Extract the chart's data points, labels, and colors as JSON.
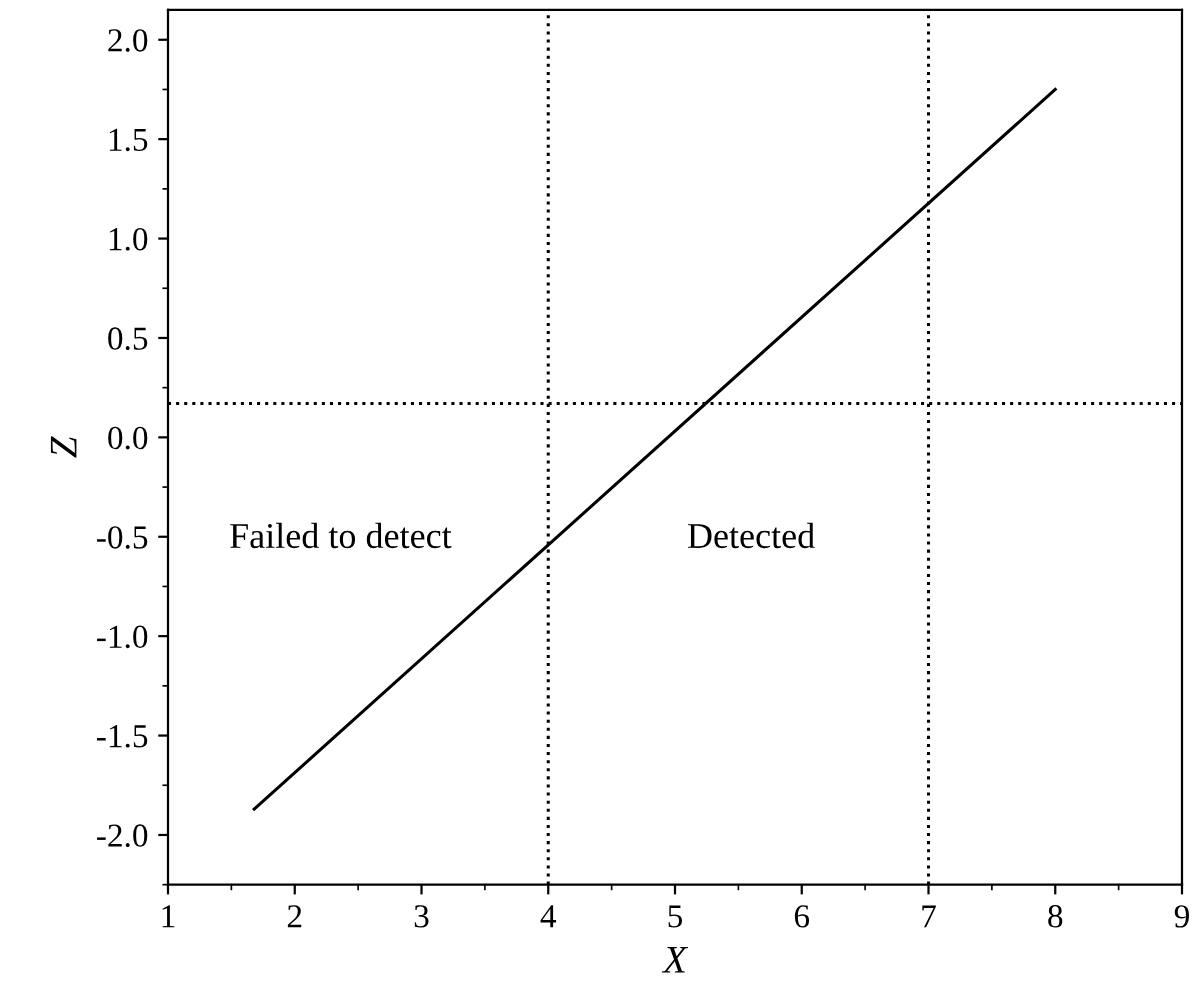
{
  "chart_data": {
    "type": "line",
    "xlabel": "X",
    "ylabel": "Z",
    "xlim": [
      1,
      9
    ],
    "xticks": [
      1,
      2,
      3,
      4,
      5,
      6,
      7,
      8,
      9
    ],
    "ylim": [
      -2.25,
      2.15
    ],
    "yticks": [
      {
        "value": -2.0,
        "label": "-2.0"
      },
      {
        "value": -1.5,
        "label": "-1.5"
      },
      {
        "value": -1.0,
        "label": "-1.0"
      },
      {
        "value": -0.5,
        "label": "-0.5"
      },
      {
        "value": 0.0,
        "label": "0.0"
      },
      {
        "value": 0.5,
        "label": "0.5"
      },
      {
        "value": 1.0,
        "label": "1.0"
      },
      {
        "value": 1.5,
        "label": "1.5"
      },
      {
        "value": 2.0,
        "label": "2.0"
      }
    ],
    "series": [
      {
        "color": "#000000",
        "x": [
          1.68,
          8.0
        ],
        "values": [
          -1.87,
          1.75
        ]
      }
    ],
    "marker": "none",
    "line_style": "solid",
    "grid": false,
    "legend": false,
    "ref_lines": [
      {
        "axis": "x",
        "value": 4,
        "color": "#000000",
        "line_style": "dotted"
      },
      {
        "axis": "x",
        "value": 7,
        "color": "#000000",
        "line_style": "dotted"
      },
      {
        "axis": "y",
        "value": 0.17,
        "color": "#000000",
        "line_style": "dotted"
      }
    ],
    "annotations": [
      "Failed to detect",
      "Detected"
    ]
  }
}
